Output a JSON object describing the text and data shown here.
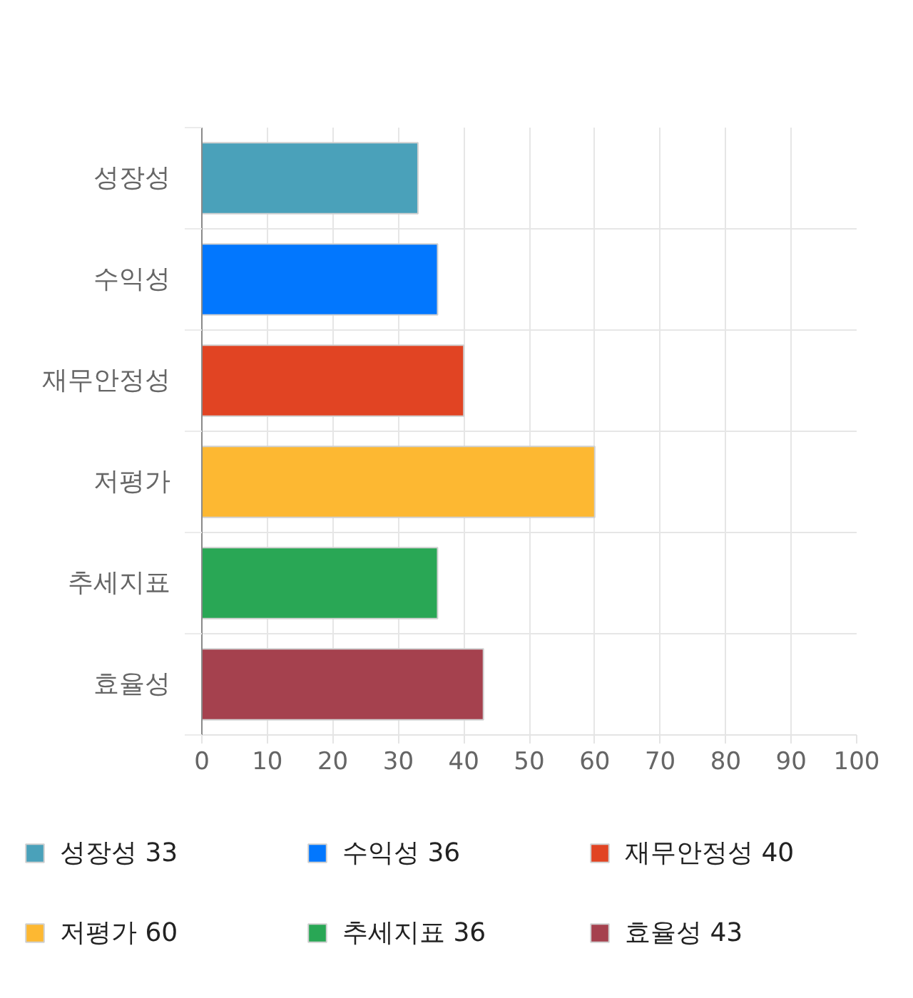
{
  "chart_data": {
    "type": "bar",
    "orientation": "horizontal",
    "stacked": true,
    "categories": [
      "성장성",
      "수익성",
      "재무안정성",
      "저평가",
      "추세지표",
      "효율성"
    ],
    "series": [
      {
        "name": "성장성 33",
        "color": "#4aa1ba",
        "values": [
          33,
          null,
          null,
          null,
          null,
          null
        ]
      },
      {
        "name": "수익성 36",
        "color": "#0277fe",
        "values": [
          null,
          36,
          null,
          null,
          null,
          null
        ]
      },
      {
        "name": "재무안정성 40",
        "color": "#e14423",
        "values": [
          null,
          null,
          40,
          null,
          null,
          null
        ]
      },
      {
        "name": "저평가 60",
        "color": "#fdb832",
        "values": [
          null,
          null,
          null,
          60,
          null,
          null
        ]
      },
      {
        "name": "추세지표 36",
        "color": "#29a755",
        "values": [
          null,
          null,
          null,
          null,
          36,
          null
        ]
      },
      {
        "name": "효율성 43",
        "color": "#a5414e",
        "values": [
          null,
          null,
          null,
          null,
          null,
          43
        ]
      }
    ],
    "xlim": [
      0,
      100
    ],
    "xticks": [
      0,
      10,
      20,
      30,
      40,
      50,
      60,
      70,
      80,
      90,
      100
    ],
    "grid": true,
    "legend": "bottom"
  }
}
